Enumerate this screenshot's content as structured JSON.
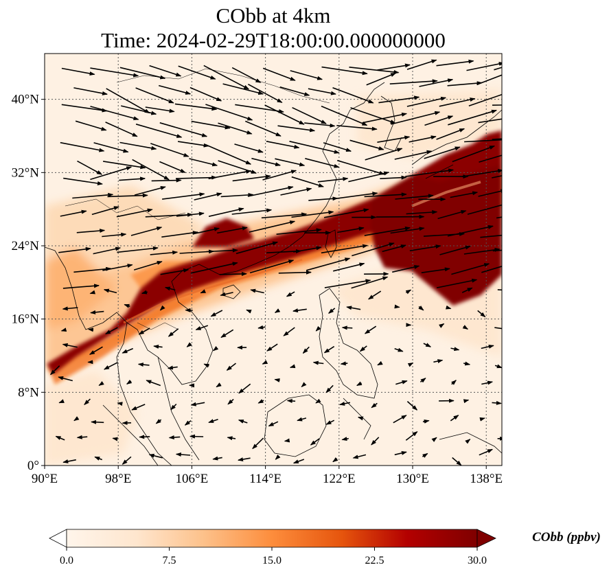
{
  "title": {
    "line1": "CObb at 4km",
    "line2": "Time: 2024-02-29T18:00:00.000000000"
  },
  "map": {
    "x_ticks": [
      "90°E",
      "98°E",
      "106°E",
      "114°E",
      "122°E",
      "130°E",
      "138°E"
    ],
    "y_ticks": [
      "0°",
      "8°N",
      "16°N",
      "24°N",
      "32°N",
      "40°N"
    ],
    "lon_values": [
      90,
      98,
      106,
      114,
      122,
      130,
      138
    ],
    "lat_values": [
      0,
      8,
      16,
      24,
      32,
      40
    ],
    "lon_range": [
      90,
      139.7
    ],
    "lat_range": [
      0,
      45
    ],
    "gridlines": true
  },
  "colorbar": {
    "label": "CObb (ppbv)",
    "ticks": [
      "0.0",
      "7.5",
      "15.0",
      "22.5",
      "30.0"
    ],
    "range": [
      0,
      30
    ],
    "extend": "both",
    "colormap": [
      "#fff5eb",
      "#fdd9b4",
      "#fdae6b",
      "#f16913",
      "#d94801",
      "#a50f15",
      "#7f0000"
    ]
  }
}
